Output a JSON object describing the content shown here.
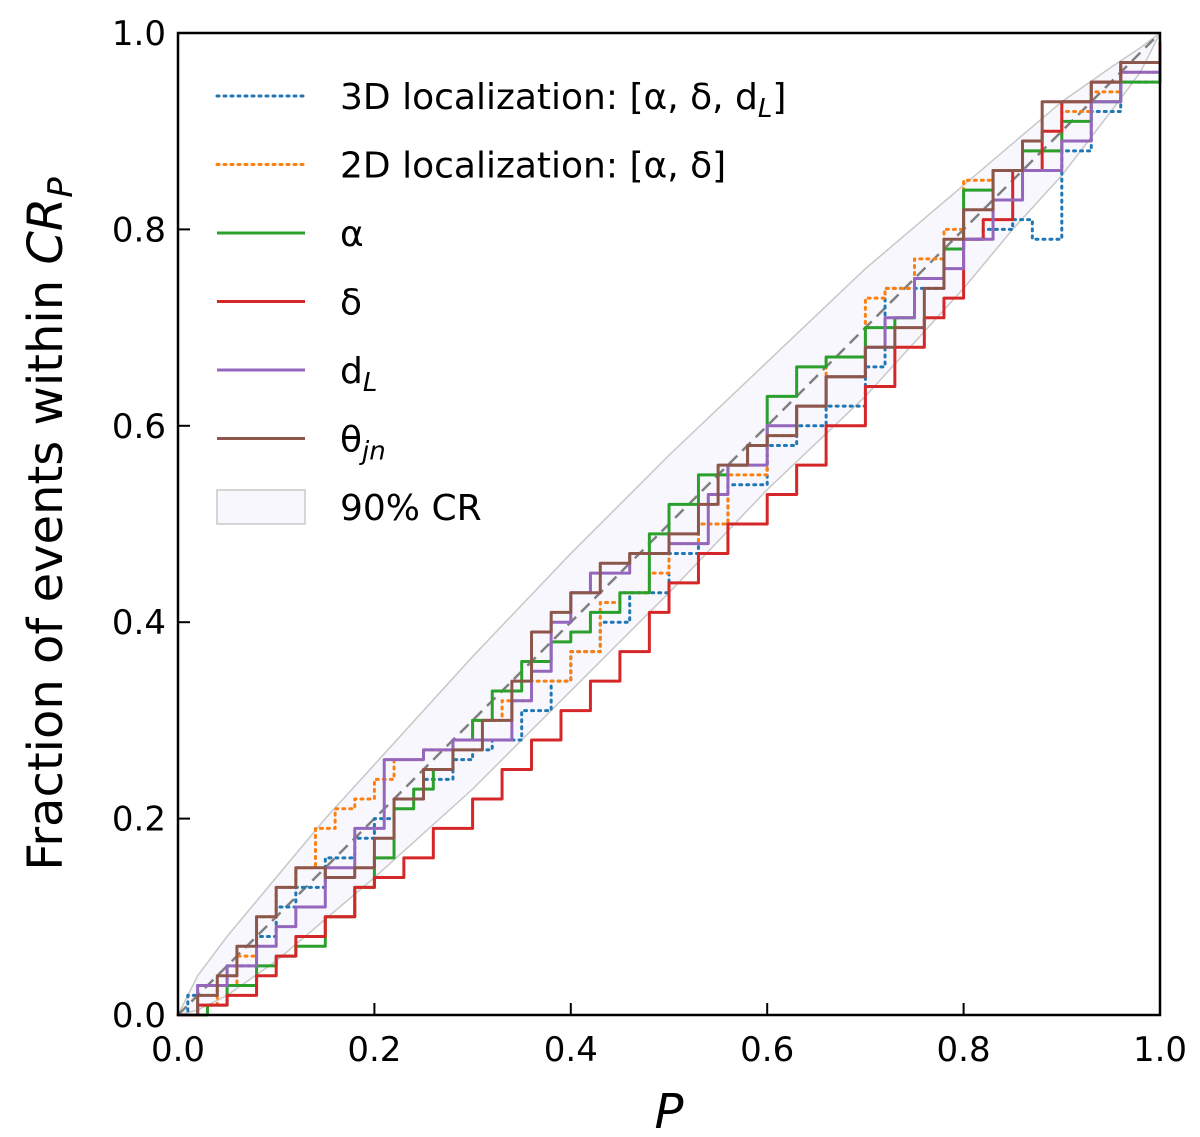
{
  "chart_data": {
    "type": "line",
    "xlabel": "P",
    "ylabel": "Fraction of events within CR_P",
    "xlim": [
      0.0,
      1.0
    ],
    "ylim": [
      0.0,
      1.0
    ],
    "x_ticks": [
      "0.0",
      "0.2",
      "0.4",
      "0.6",
      "0.8",
      "1.0"
    ],
    "y_ticks": [
      "0.0",
      "0.2",
      "0.4",
      "0.6",
      "0.8",
      "1.0"
    ],
    "grid": false,
    "legend_position": "top-left",
    "diagonal": {
      "from": [
        0,
        0
      ],
      "to": [
        1,
        1
      ],
      "color": "#808080",
      "dash": "dashed"
    },
    "band": {
      "label": "90% CR",
      "fill": "#f7f7fd",
      "edge": "#c8c8c8",
      "upper": [
        [
          0,
          0
        ],
        [
          0.02,
          0.04
        ],
        [
          0.05,
          0.08
        ],
        [
          0.1,
          0.14
        ],
        [
          0.15,
          0.2
        ],
        [
          0.2,
          0.255
        ],
        [
          0.3,
          0.365
        ],
        [
          0.4,
          0.47
        ],
        [
          0.5,
          0.57
        ],
        [
          0.6,
          0.665
        ],
        [
          0.7,
          0.76
        ],
        [
          0.8,
          0.845
        ],
        [
          0.9,
          0.93
        ],
        [
          0.95,
          0.965
        ],
        [
          0.98,
          0.985
        ],
        [
          1,
          1
        ]
      ],
      "lower": [
        [
          0,
          0
        ],
        [
          0.02,
          0.005
        ],
        [
          0.05,
          0.02
        ],
        [
          0.1,
          0.055
        ],
        [
          0.2,
          0.14
        ],
        [
          0.3,
          0.23
        ],
        [
          0.4,
          0.33
        ],
        [
          0.5,
          0.43
        ],
        [
          0.6,
          0.535
        ],
        [
          0.7,
          0.63
        ],
        [
          0.8,
          0.74
        ],
        [
          0.85,
          0.8
        ],
        [
          0.9,
          0.855
        ],
        [
          0.95,
          0.92
        ],
        [
          0.98,
          0.96
        ],
        [
          1,
          1
        ]
      ]
    },
    "series": [
      {
        "name": "3D localization: [α, δ, d_L]",
        "color": "#1f77b4",
        "style": "dotted",
        "x": [
          0,
          0.01,
          0.02,
          0.05,
          0.08,
          0.1,
          0.12,
          0.15,
          0.18,
          0.2,
          0.22,
          0.25,
          0.28,
          0.3,
          0.32,
          0.35,
          0.38,
          0.4,
          0.43,
          0.46,
          0.5,
          0.53,
          0.56,
          0.6,
          0.63,
          0.66,
          0.7,
          0.72,
          0.75,
          0.78,
          0.8,
          0.82,
          0.85,
          0.87,
          0.9,
          0.93,
          0.96,
          1.0
        ],
        "y": [
          0,
          0.02,
          0.03,
          0.05,
          0.08,
          0.11,
          0.13,
          0.16,
          0.18,
          0.2,
          0.22,
          0.24,
          0.26,
          0.27,
          0.28,
          0.31,
          0.34,
          0.37,
          0.4,
          0.43,
          0.47,
          0.5,
          0.54,
          0.58,
          0.6,
          0.62,
          0.66,
          0.74,
          0.74,
          0.78,
          0.79,
          0.8,
          0.81,
          0.79,
          0.88,
          0.92,
          0.95,
          0.98
        ]
      },
      {
        "name": "2D localization: [α, δ]",
        "color": "#ff7f0e",
        "style": "dotted",
        "x": [
          0,
          0.02,
          0.04,
          0.06,
          0.08,
          0.1,
          0.12,
          0.14,
          0.16,
          0.18,
          0.2,
          0.22,
          0.25,
          0.28,
          0.3,
          0.33,
          0.36,
          0.4,
          0.43,
          0.45,
          0.48,
          0.5,
          0.53,
          0.56,
          0.6,
          0.63,
          0.66,
          0.7,
          0.72,
          0.75,
          0.78,
          0.8,
          0.83,
          0.86,
          0.9,
          0.93,
          0.96,
          1.0
        ],
        "y": [
          0,
          0.01,
          0.03,
          0.06,
          0.1,
          0.13,
          0.15,
          0.19,
          0.21,
          0.22,
          0.24,
          0.26,
          0.27,
          0.28,
          0.3,
          0.32,
          0.34,
          0.37,
          0.42,
          0.43,
          0.45,
          0.48,
          0.5,
          0.55,
          0.59,
          0.62,
          0.67,
          0.73,
          0.74,
          0.77,
          0.8,
          0.85,
          0.86,
          0.88,
          0.92,
          0.94,
          0.96,
          0.99
        ]
      },
      {
        "name": "α",
        "color": "#2ca02c",
        "style": "solid",
        "x": [
          0,
          0.03,
          0.05,
          0.08,
          0.1,
          0.12,
          0.15,
          0.18,
          0.2,
          0.22,
          0.24,
          0.26,
          0.28,
          0.3,
          0.32,
          0.35,
          0.38,
          0.4,
          0.42,
          0.45,
          0.48,
          0.5,
          0.53,
          0.56,
          0.58,
          0.6,
          0.63,
          0.66,
          0.7,
          0.73,
          0.75,
          0.78,
          0.8,
          0.83,
          0.86,
          0.9,
          0.93,
          0.96,
          1.0
        ],
        "y": [
          0,
          0.01,
          0.03,
          0.05,
          0.06,
          0.07,
          0.1,
          0.13,
          0.16,
          0.21,
          0.23,
          0.25,
          0.28,
          0.3,
          0.33,
          0.36,
          0.38,
          0.39,
          0.41,
          0.43,
          0.49,
          0.52,
          0.55,
          0.56,
          0.58,
          0.63,
          0.66,
          0.67,
          0.7,
          0.71,
          0.75,
          0.78,
          0.84,
          0.86,
          0.88,
          0.91,
          0.93,
          0.95,
          0.98
        ]
      },
      {
        "name": "δ",
        "color": "#d62728",
        "style": "solid",
        "x": [
          0,
          0.02,
          0.05,
          0.08,
          0.1,
          0.12,
          0.15,
          0.18,
          0.2,
          0.23,
          0.26,
          0.3,
          0.33,
          0.36,
          0.39,
          0.42,
          0.45,
          0.48,
          0.5,
          0.53,
          0.56,
          0.6,
          0.63,
          0.66,
          0.7,
          0.73,
          0.76,
          0.78,
          0.8,
          0.82,
          0.85,
          0.88,
          0.9,
          0.93,
          0.96,
          1.0
        ],
        "y": [
          0,
          0.01,
          0.02,
          0.04,
          0.06,
          0.08,
          0.1,
          0.13,
          0.14,
          0.16,
          0.19,
          0.22,
          0.25,
          0.28,
          0.31,
          0.34,
          0.37,
          0.41,
          0.44,
          0.47,
          0.5,
          0.53,
          0.56,
          0.6,
          0.64,
          0.68,
          0.71,
          0.73,
          0.79,
          0.81,
          0.86,
          0.9,
          0.93,
          0.95,
          0.97,
          0.99
        ]
      },
      {
        "name": "d_L",
        "color": "#9467bd",
        "style": "solid",
        "x": [
          0,
          0.02,
          0.05,
          0.08,
          0.1,
          0.12,
          0.15,
          0.18,
          0.21,
          0.25,
          0.28,
          0.31,
          0.34,
          0.36,
          0.38,
          0.4,
          0.42,
          0.46,
          0.5,
          0.54,
          0.56,
          0.6,
          0.63,
          0.66,
          0.7,
          0.72,
          0.75,
          0.78,
          0.8,
          0.83,
          0.86,
          0.9,
          0.93,
          0.96,
          1.0
        ],
        "y": [
          0,
          0.03,
          0.05,
          0.07,
          0.09,
          0.11,
          0.15,
          0.19,
          0.26,
          0.27,
          0.28,
          0.28,
          0.32,
          0.35,
          0.4,
          0.43,
          0.45,
          0.47,
          0.48,
          0.53,
          0.56,
          0.6,
          0.62,
          0.65,
          0.68,
          0.71,
          0.75,
          0.76,
          0.79,
          0.83,
          0.86,
          0.89,
          0.93,
          0.96,
          0.97
        ]
      },
      {
        "name": "θ_jn",
        "color": "#8c564b",
        "style": "solid",
        "x": [
          0,
          0.02,
          0.04,
          0.06,
          0.08,
          0.1,
          0.12,
          0.15,
          0.18,
          0.2,
          0.22,
          0.25,
          0.28,
          0.31,
          0.34,
          0.36,
          0.38,
          0.4,
          0.43,
          0.46,
          0.5,
          0.53,
          0.55,
          0.58,
          0.6,
          0.63,
          0.66,
          0.7,
          0.73,
          0.76,
          0.78,
          0.8,
          0.83,
          0.86,
          0.88,
          0.9,
          0.93,
          0.96,
          1.0
        ],
        "y": [
          0,
          0.02,
          0.04,
          0.07,
          0.1,
          0.13,
          0.15,
          0.14,
          0.15,
          0.18,
          0.22,
          0.25,
          0.27,
          0.3,
          0.34,
          0.39,
          0.41,
          0.43,
          0.46,
          0.47,
          0.49,
          0.52,
          0.56,
          0.58,
          0.59,
          0.62,
          0.65,
          0.68,
          0.7,
          0.74,
          0.79,
          0.82,
          0.86,
          0.89,
          0.93,
          0.93,
          0.95,
          0.97,
          0.98
        ]
      }
    ]
  }
}
